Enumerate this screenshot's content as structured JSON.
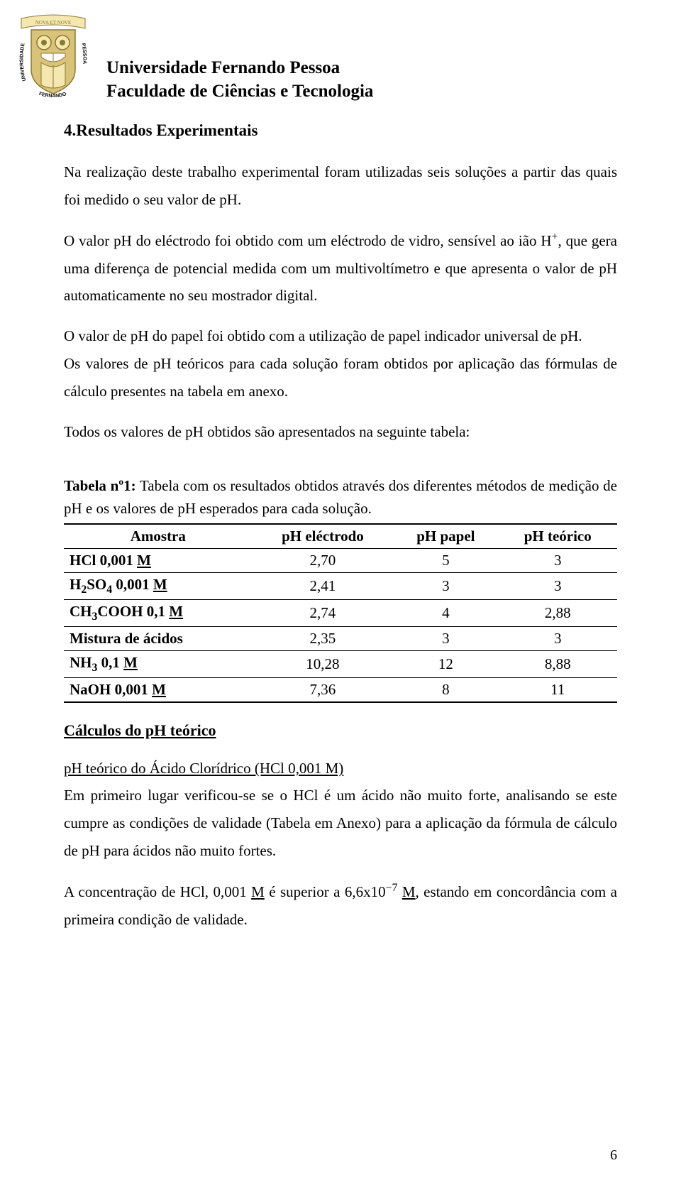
{
  "header": {
    "line1": "Universidade Fernando Pessoa",
    "line2": "Faculdade de Ciências e Tecnologia"
  },
  "section": {
    "title": "4.Resultados Experimentais"
  },
  "paragraphs": {
    "p1": "Na realização deste trabalho experimental foram utilizadas seis soluções a partir das quais foi medido o seu valor de pH.",
    "p2a": "O valor pH do eléctrodo foi obtido com um eléctrodo de vidro, sensível ao ião H",
    "p2b": ", que gera uma diferença de potencial medida com um multivoltímetro e que apresenta o valor de pH automaticamente no seu mostrador digital.",
    "p3": "O valor de pH do papel foi obtido com a utilização de papel indicador universal de pH.",
    "p4": "Os valores de pH teóricos para cada solução foram obtidos por aplicação das fórmulas de cálculo presentes na tabela em anexo.",
    "p5": "Todos os valores de pH obtidos são apresentados na seguinte tabela:"
  },
  "table": {
    "caption_bold": "Tabela nº1:",
    "caption_rest": " Tabela com os resultados obtidos através dos diferentes métodos de medição de pH e os valores de pH esperados para cada solução.",
    "columns": [
      "Amostra",
      "pH eléctrodo",
      "pH papel",
      "pH teórico"
    ],
    "rows": [
      {
        "sample_html": "HCl 0,001 <span class='underline'>M</span>",
        "electrode": "2,70",
        "paper": "5",
        "theoretical": "3"
      },
      {
        "sample_html": "H<sub>2</sub>SO<sub>4</sub> 0,001 <span class='underline'>M</span>",
        "electrode": "2,41",
        "paper": "3",
        "theoretical": "3"
      },
      {
        "sample_html": "CH<sub>3</sub>COOH 0,1 <span class='underline'>M</span>",
        "electrode": "2,74",
        "paper": "4",
        "theoretical": "2,88"
      },
      {
        "sample_html": "Mistura de ácidos",
        "electrode": "2,35",
        "paper": "3",
        "theoretical": "3"
      },
      {
        "sample_html": "NH<sub>3</sub> 0,1 <span class='underline'>M</span>",
        "electrode": "10,28",
        "paper": "12",
        "theoretical": "8,88"
      },
      {
        "sample_html": "NaOH 0,001 <span class='underline'>M</span>",
        "electrode": "7,36",
        "paper": "8",
        "theoretical": "11"
      }
    ]
  },
  "calc": {
    "heading": "Cálculos do pH teórico",
    "sub": "pH teórico do Ácido Clorídrico (HCl 0,001 M)",
    "c1": "Em primeiro lugar verificou-se se o HCl é um ácido não muito forte, analisando se este cumpre as condições de validade (Tabela em Anexo) para a aplicação da fórmula de cálculo de pH para ácidos não muito fortes.",
    "c2a": "A concentração de HCl, 0,001 ",
    "c2b": " é superior a 6,6x10",
    "c2c": " ",
    "c2d": ", estando em concordância com a primeira condição de validade."
  },
  "page_number": "6",
  "logo": {
    "banner_text": "NOVA ET NOVE",
    "arc_left": "UNIVERSIDADE",
    "arc_bottom": "FERNANDO",
    "arc_right": "PESSOA",
    "colors": {
      "olive": "#8a7a2f",
      "cream": "#f4e7b0",
      "tan": "#d9c27a",
      "black": "#000000"
    }
  }
}
